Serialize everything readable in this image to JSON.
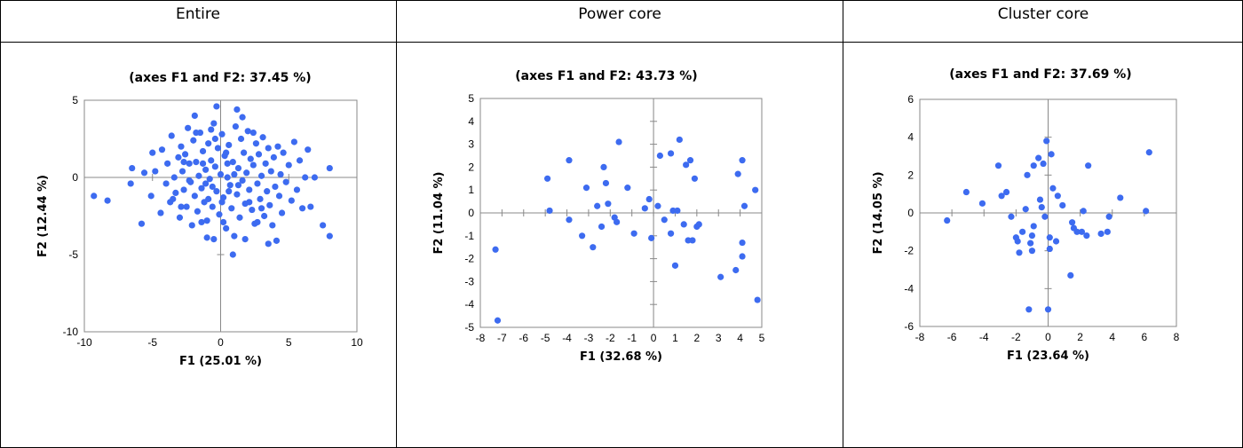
{
  "table": {
    "columns": [
      "Entire",
      "Power core",
      "Cluster core"
    ]
  },
  "colors": {
    "point": "#3d6bf0",
    "axis": "#888888",
    "frame": "#888888"
  },
  "chart_data": [
    {
      "type": "scatter",
      "title": "(axes F1 and F2: 37.45 %)",
      "xlabel": "F1 (25.01 %)",
      "ylabel": "F2 (12.44 %)",
      "xlim": [
        -10,
        10
      ],
      "ylim": [
        -10,
        5
      ],
      "xticks": [
        -10,
        -5,
        0,
        5,
        10
      ],
      "yticks": [
        -10,
        -5,
        0,
        5
      ],
      "grid": false,
      "series": [
        {
          "points": [
            [
              -9.3,
              -1.2
            ],
            [
              -8.3,
              -1.5
            ],
            [
              -6.6,
              -0.4
            ],
            [
              -6.5,
              0.6
            ],
            [
              -5.8,
              -3.0
            ],
            [
              -5.6,
              0.3
            ],
            [
              -5.1,
              -1.2
            ],
            [
              -5.0,
              1.6
            ],
            [
              -4.8,
              0.4
            ],
            [
              -4.4,
              -2.3
            ],
            [
              -4.3,
              1.8
            ],
            [
              -4.0,
              -0.4
            ],
            [
              -3.9,
              0.9
            ],
            [
              -3.7,
              -1.6
            ],
            [
              -3.6,
              2.7
            ],
            [
              -3.4,
              0.0
            ],
            [
              -3.3,
              -1.0
            ],
            [
              -3.1,
              1.3
            ],
            [
              -3.0,
              -2.6
            ],
            [
              -2.9,
              2.0
            ],
            [
              -2.8,
              0.4
            ],
            [
              -2.7,
              -0.8
            ],
            [
              -2.6,
              1.5
            ],
            [
              -2.5,
              -1.9
            ],
            [
              -2.4,
              3.2
            ],
            [
              -2.3,
              0.9
            ],
            [
              -2.2,
              -0.3
            ],
            [
              -2.1,
              -3.1
            ],
            [
              -2.0,
              2.4
            ],
            [
              -1.9,
              -1.2
            ],
            [
              -1.8,
              1.0
            ],
            [
              -1.7,
              -2.2
            ],
            [
              -1.6,
              0.1
            ],
            [
              -1.5,
              2.9
            ],
            [
              -1.4,
              -0.7
            ],
            [
              -1.3,
              1.7
            ],
            [
              -1.2,
              -1.6
            ],
            [
              -1.1,
              0.5
            ],
            [
              -1.0,
              -2.8
            ],
            [
              -0.9,
              2.2
            ],
            [
              -0.8,
              -0.1
            ],
            [
              -0.7,
              1.1
            ],
            [
              -0.6,
              -1.9
            ],
            [
              -0.5,
              3.5
            ],
            [
              -0.4,
              0.7
            ],
            [
              -0.3,
              -0.9
            ],
            [
              -0.2,
              1.9
            ],
            [
              -0.1,
              -2.4
            ],
            [
              0.0,
              0.2
            ],
            [
              0.1,
              2.8
            ],
            [
              0.2,
              -1.3
            ],
            [
              0.3,
              1.4
            ],
            [
              0.4,
              -3.3
            ],
            [
              0.5,
              0.0
            ],
            [
              0.6,
              2.1
            ],
            [
              0.7,
              -0.5
            ],
            [
              0.8,
              -2.0
            ],
            [
              0.9,
              1.0
            ],
            [
              1.0,
              -3.8
            ],
            [
              1.1,
              3.3
            ],
            [
              1.2,
              -1.1
            ],
            [
              1.3,
              0.6
            ],
            [
              1.4,
              -2.6
            ],
            [
              1.5,
              2.5
            ],
            [
              1.6,
              -0.2
            ],
            [
              1.7,
              1.6
            ],
            [
              1.8,
              -1.7
            ],
            [
              1.9,
              0.3
            ],
            [
              2.0,
              3.0
            ],
            [
              2.1,
              -0.8
            ],
            [
              2.2,
              1.2
            ],
            [
              2.3,
              -2.1
            ],
            [
              2.4,
              0.8
            ],
            [
              2.5,
              -3.0
            ],
            [
              2.6,
              2.2
            ],
            [
              2.7,
              -0.4
            ],
            [
              2.8,
              1.5
            ],
            [
              2.9,
              -1.4
            ],
            [
              3.0,
              0.1
            ],
            [
              3.1,
              2.6
            ],
            [
              3.2,
              -2.5
            ],
            [
              3.3,
              0.9
            ],
            [
              3.4,
              -0.9
            ],
            [
              3.5,
              1.9
            ],
            [
              3.6,
              -1.8
            ],
            [
              3.7,
              0.4
            ],
            [
              3.8,
              -3.1
            ],
            [
              3.9,
              1.3
            ],
            [
              4.0,
              -0.6
            ],
            [
              4.1,
              -4.1
            ],
            [
              4.2,
              2.0
            ],
            [
              4.3,
              -1.2
            ],
            [
              4.4,
              0.2
            ],
            [
              4.5,
              -2.3
            ],
            [
              4.6,
              1.6
            ],
            [
              4.8,
              -0.3
            ],
            [
              5.0,
              0.8
            ],
            [
              5.2,
              -1.5
            ],
            [
              5.4,
              2.3
            ],
            [
              5.6,
              -0.8
            ],
            [
              5.8,
              1.1
            ],
            [
              6.0,
              -2.0
            ],
            [
              6.2,
              0.0
            ],
            [
              6.4,
              1.8
            ],
            [
              6.6,
              -1.9
            ],
            [
              6.9,
              0.0
            ],
            [
              7.5,
              -3.1
            ],
            [
              8.0,
              0.6
            ],
            [
              8.0,
              -3.8
            ],
            [
              -0.5,
              -4.0
            ],
            [
              1.2,
              4.4
            ],
            [
              0.9,
              -5.0
            ],
            [
              -1.9,
              4.0
            ],
            [
              -0.3,
              4.6
            ],
            [
              1.8,
              -4.0
            ],
            [
              -1.0,
              -3.9
            ],
            [
              -2.9,
              -1.9
            ],
            [
              2.7,
              -2.9
            ],
            [
              3.5,
              -4.3
            ],
            [
              -1.3,
              0.9
            ],
            [
              0.4,
              1.6
            ],
            [
              -0.6,
              -0.6
            ],
            [
              1.0,
              0.2
            ],
            [
              -2.3,
              -0.2
            ],
            [
              2.1,
              -1.6
            ],
            [
              -0.9,
              -1.4
            ],
            [
              0.2,
              -2.9
            ],
            [
              -1.8,
              2.9
            ],
            [
              1.6,
              3.9
            ],
            [
              -3.5,
              -1.4
            ],
            [
              3.0,
              -2.0
            ],
            [
              -0.4,
              2.5
            ],
            [
              0.6,
              -0.9
            ],
            [
              -1.4,
              -2.9
            ],
            [
              2.4,
              2.9
            ],
            [
              -2.7,
              1.0
            ],
            [
              0.1,
              -1.6
            ],
            [
              1.3,
              -0.5
            ],
            [
              -0.7,
              3.1
            ],
            [
              -1.1,
              -0.4
            ],
            [
              0.5,
              0.9
            ]
          ]
        }
      ]
    },
    {
      "type": "scatter",
      "title": "(axes F1 and F2: 43.73 %)",
      "xlabel": "F1 (32.68 %)",
      "ylabel": "F2 (11.04 %)",
      "xlim": [
        -8,
        5
      ],
      "ylim": [
        -5,
        5
      ],
      "xticks": [
        -8,
        -7,
        -6,
        -5,
        -4,
        -3,
        -2,
        -1,
        0,
        1,
        2,
        3,
        4,
        5
      ],
      "yticks": [
        -5,
        -4,
        -3,
        -2,
        -1,
        0,
        1,
        2,
        3,
        4,
        5
      ],
      "grid": false,
      "series": [
        {
          "points": [
            [
              -7.3,
              -1.6
            ],
            [
              -7.2,
              -4.7
            ],
            [
              -4.9,
              1.5
            ],
            [
              -4.8,
              0.1
            ],
            [
              -3.9,
              2.3
            ],
            [
              -3.9,
              -0.3
            ],
            [
              -3.3,
              -1.0
            ],
            [
              -3.1,
              1.1
            ],
            [
              -2.8,
              -1.5
            ],
            [
              -2.6,
              0.3
            ],
            [
              -2.4,
              -0.6
            ],
            [
              -2.3,
              2.0
            ],
            [
              -2.2,
              1.3
            ],
            [
              -2.1,
              0.4
            ],
            [
              -1.8,
              -0.2
            ],
            [
              -1.7,
              -0.4
            ],
            [
              -1.6,
              3.1
            ],
            [
              -1.2,
              1.1
            ],
            [
              -0.9,
              -0.9
            ],
            [
              -0.4,
              0.2
            ],
            [
              -0.2,
              0.6
            ],
            [
              -0.1,
              -1.1
            ],
            [
              0.2,
              0.3
            ],
            [
              0.3,
              2.5
            ],
            [
              0.5,
              -0.3
            ],
            [
              0.8,
              -0.9
            ],
            [
              0.8,
              2.6
            ],
            [
              0.9,
              0.1
            ],
            [
              1.0,
              -2.3
            ],
            [
              1.1,
              0.1
            ],
            [
              1.2,
              3.2
            ],
            [
              1.4,
              -0.5
            ],
            [
              1.5,
              2.1
            ],
            [
              1.6,
              -1.2
            ],
            [
              1.7,
              2.3
            ],
            [
              1.8,
              -1.2
            ],
            [
              1.9,
              1.5
            ],
            [
              2.0,
              -0.6
            ],
            [
              2.1,
              -0.5
            ],
            [
              3.1,
              -2.8
            ],
            [
              3.8,
              -2.5
            ],
            [
              3.9,
              1.7
            ],
            [
              4.1,
              2.3
            ],
            [
              4.1,
              -1.9
            ],
            [
              4.1,
              -1.3
            ],
            [
              4.2,
              0.3
            ],
            [
              4.7,
              1.0
            ],
            [
              4.8,
              -3.8
            ]
          ]
        }
      ]
    },
    {
      "type": "scatter",
      "title": "(axes F1 and F2: 37.69 %)",
      "xlabel": "F1 (23.64 %)",
      "ylabel": "F2 (14.05 %)",
      "xlim": [
        -8,
        8
      ],
      "ylim": [
        -6,
        6
      ],
      "xticks": [
        -8,
        -6,
        -4,
        -2,
        0,
        2,
        4,
        6,
        8
      ],
      "yticks": [
        -6,
        -4,
        -2,
        0,
        2,
        4,
        6
      ],
      "grid": false,
      "series": [
        {
          "points": [
            [
              -6.3,
              -0.4
            ],
            [
              -5.1,
              1.1
            ],
            [
              -4.1,
              0.5
            ],
            [
              -3.1,
              2.5
            ],
            [
              -2.9,
              0.9
            ],
            [
              -2.6,
              1.1
            ],
            [
              -2.3,
              -0.2
            ],
            [
              -2.0,
              -1.3
            ],
            [
              -1.9,
              -1.5
            ],
            [
              -1.8,
              -2.1
            ],
            [
              -1.6,
              -1.0
            ],
            [
              -1.4,
              0.2
            ],
            [
              -1.3,
              2.0
            ],
            [
              -1.2,
              -5.1
            ],
            [
              -1.1,
              -1.6
            ],
            [
              -1.0,
              -2.0
            ],
            [
              -1.0,
              -1.2
            ],
            [
              -0.9,
              -0.7
            ],
            [
              -0.9,
              2.5
            ],
            [
              -0.6,
              2.9
            ],
            [
              -0.5,
              0.7
            ],
            [
              -0.4,
              0.3
            ],
            [
              -0.3,
              2.6
            ],
            [
              -0.2,
              -0.2
            ],
            [
              -0.1,
              3.8
            ],
            [
              0.0,
              -5.1
            ],
            [
              0.1,
              -1.3
            ],
            [
              0.1,
              -1.9
            ],
            [
              0.2,
              3.1
            ],
            [
              0.3,
              1.3
            ],
            [
              0.5,
              -1.5
            ],
            [
              0.6,
              0.9
            ],
            [
              0.9,
              0.4
            ],
            [
              1.4,
              -3.3
            ],
            [
              1.5,
              -0.5
            ],
            [
              1.6,
              -0.8
            ],
            [
              1.8,
              -1.0
            ],
            [
              2.1,
              -1.0
            ],
            [
              2.2,
              0.1
            ],
            [
              2.4,
              -1.2
            ],
            [
              2.5,
              2.5
            ],
            [
              3.3,
              -1.1
            ],
            [
              3.7,
              -1.0
            ],
            [
              3.8,
              -0.2
            ],
            [
              4.5,
              0.8
            ],
            [
              6.1,
              0.1
            ],
            [
              6.3,
              3.2
            ]
          ]
        }
      ]
    }
  ]
}
